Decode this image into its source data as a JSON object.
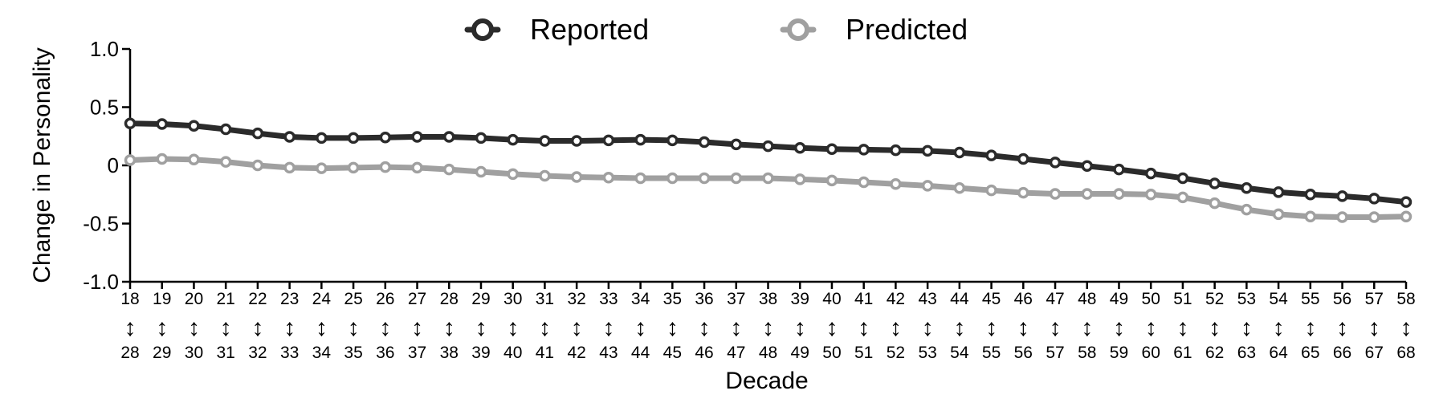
{
  "chart_data": {
    "type": "line",
    "xlabel": "Decade",
    "ylabel": "Change in Personality",
    "ylim": [
      -1.0,
      1.0
    ],
    "yticks": [
      "1.0",
      "0.5",
      "0",
      "-0.5",
      "-1.0"
    ],
    "yticks_values": [
      1.0,
      0.5,
      0,
      -0.5,
      -1.0
    ],
    "x_from": [
      "18",
      "19",
      "20",
      "21",
      "22",
      "23",
      "24",
      "25",
      "26",
      "27",
      "28",
      "29",
      "30",
      "31",
      "32",
      "33",
      "34",
      "35",
      "36",
      "37",
      "38",
      "39",
      "40",
      "41",
      "42",
      "43",
      "44",
      "45",
      "46",
      "47",
      "48",
      "49",
      "50",
      "51",
      "52",
      "53",
      "54",
      "55",
      "56",
      "57",
      "58"
    ],
    "x_arrow": "↕",
    "x_to": [
      "28",
      "29",
      "30",
      "31",
      "32",
      "33",
      "34",
      "35",
      "36",
      "37",
      "38",
      "39",
      "40",
      "41",
      "42",
      "43",
      "44",
      "45",
      "46",
      "47",
      "48",
      "49",
      "50",
      "51",
      "52",
      "53",
      "54",
      "55",
      "56",
      "57",
      "58",
      "59",
      "60",
      "61",
      "62",
      "63",
      "64",
      "65",
      "66",
      "67",
      "68"
    ],
    "legend_position": "top-center",
    "grid": false,
    "series": [
      {
        "name": "Reported",
        "color": "#2b2b2b",
        "values": [
          0.36,
          0.355,
          0.34,
          0.31,
          0.275,
          0.245,
          0.235,
          0.235,
          0.24,
          0.245,
          0.245,
          0.235,
          0.22,
          0.21,
          0.21,
          0.215,
          0.22,
          0.215,
          0.2,
          0.18,
          0.165,
          0.15,
          0.14,
          0.135,
          0.13,
          0.125,
          0.11,
          0.085,
          0.055,
          0.025,
          -0.005,
          -0.035,
          -0.07,
          -0.11,
          -0.155,
          -0.195,
          -0.23,
          -0.25,
          -0.265,
          -0.285,
          -0.315
        ]
      },
      {
        "name": "Predicted",
        "color": "#a0a0a0",
        "values": [
          0.045,
          0.055,
          0.05,
          0.03,
          0.0,
          -0.02,
          -0.025,
          -0.02,
          -0.015,
          -0.02,
          -0.035,
          -0.055,
          -0.075,
          -0.09,
          -0.1,
          -0.105,
          -0.11,
          -0.11,
          -0.11,
          -0.11,
          -0.11,
          -0.12,
          -0.13,
          -0.145,
          -0.16,
          -0.175,
          -0.195,
          -0.215,
          -0.235,
          -0.245,
          -0.245,
          -0.245,
          -0.25,
          -0.275,
          -0.325,
          -0.38,
          -0.42,
          -0.44,
          -0.445,
          -0.445,
          -0.44
        ]
      }
    ]
  }
}
